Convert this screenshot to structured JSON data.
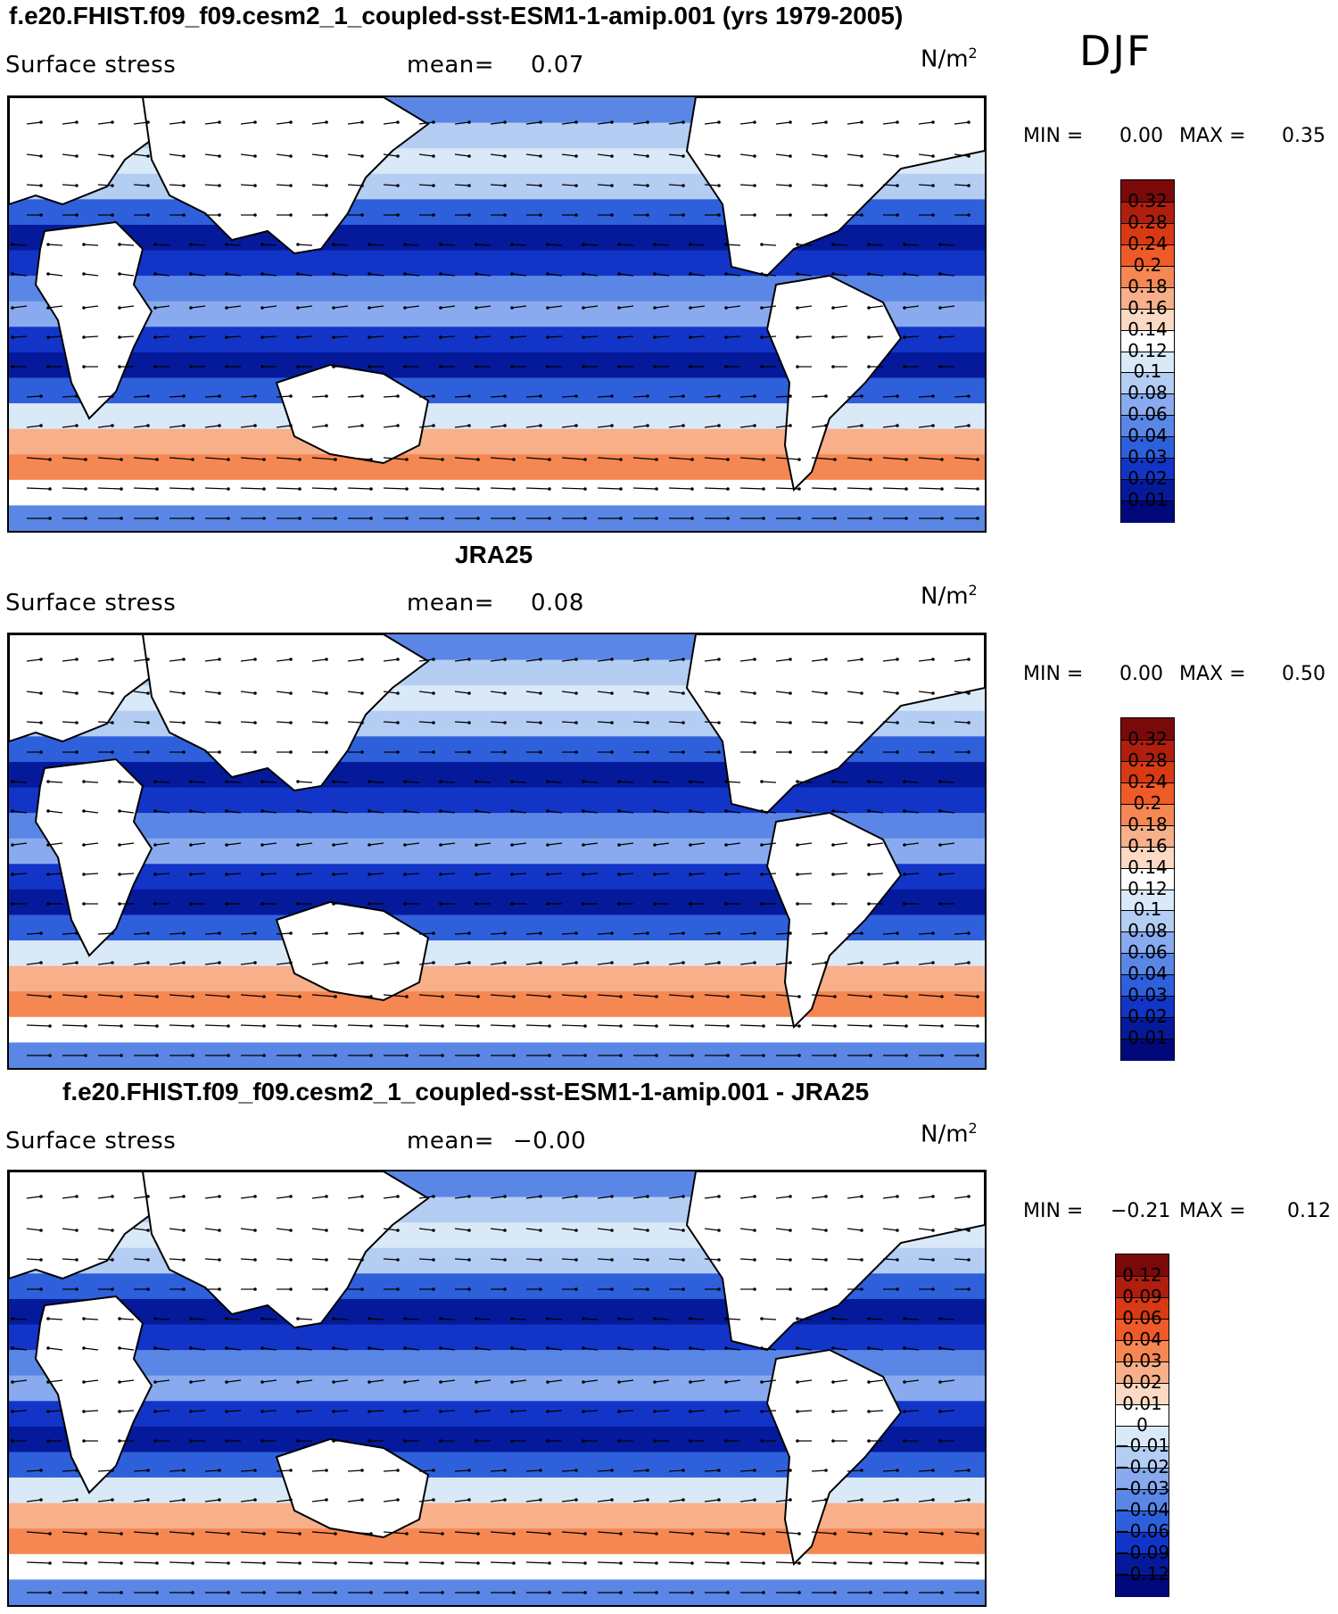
{
  "season": "DJF",
  "panels": [
    {
      "title": "f.e20.FHIST.f09_f09.cesm2_1_coupled-sst-ESM1-1-amip.001 (yrs 1979-2005)",
      "variable": "Surface stress",
      "mean_label": "mean=",
      "mean_value": "0.07",
      "units": "N/m",
      "units_exp": "2",
      "min_label": "MIN =",
      "min_value": "0.00",
      "max_label": "MAX =",
      "max_value": "0.35",
      "colorbar_labels": [
        "0.32",
        "0.28",
        "0.24",
        "0.2",
        "0.18",
        "0.16",
        "0.14",
        "0.12",
        "0.1",
        "0.08",
        "0.06",
        "0.04",
        "0.03",
        "0.02",
        "0.01"
      ],
      "colorbar_colors": [
        "#7a0a0a",
        "#b01e0e",
        "#d83a14",
        "#ee5a28",
        "#f58752",
        "#f7b08a",
        "#fbd9c2",
        "#ffffff",
        "#d9e9f7",
        "#b4cdf3",
        "#89aaee",
        "#5a87e6",
        "#2f60dc",
        "#1235c8",
        "#051a9a",
        "#00087a"
      ]
    },
    {
      "title": "JRA25",
      "variable": "Surface stress",
      "mean_label": "mean=",
      "mean_value": "0.08",
      "units": "N/m",
      "units_exp": "2",
      "min_label": "MIN =",
      "min_value": "0.00",
      "max_label": "MAX =",
      "max_value": "0.50",
      "colorbar_labels": [
        "0.32",
        "0.28",
        "0.24",
        "0.2",
        "0.18",
        "0.16",
        "0.14",
        "0.12",
        "0.1",
        "0.08",
        "0.06",
        "0.04",
        "0.03",
        "0.02",
        "0.01"
      ],
      "colorbar_colors": [
        "#7a0a0a",
        "#b01e0e",
        "#d83a14",
        "#ee5a28",
        "#f58752",
        "#f7b08a",
        "#fbd9c2",
        "#ffffff",
        "#d9e9f7",
        "#b4cdf3",
        "#89aaee",
        "#5a87e6",
        "#2f60dc",
        "#1235c8",
        "#051a9a",
        "#00087a"
      ]
    },
    {
      "title": "f.e20.FHIST.f09_f09.cesm2_1_coupled-sst-ESM1-1-amip.001 - JRA25",
      "variable": "Surface stress",
      "mean_label": "mean=",
      "mean_value": "−0.00",
      "units": "N/m",
      "units_exp": "2",
      "min_label": "MIN =",
      "min_value": "−0.21",
      "max_label": "MAX =",
      "max_value": "0.12",
      "colorbar_labels": [
        "0.12",
        "0.09",
        "0.06",
        "0.04",
        "0.03",
        "0.02",
        "0.01",
        "0",
        "−0.01",
        "−0.02",
        "−0.03",
        "−0.04",
        "−0.06",
        "−0.09",
        "−0.12"
      ],
      "colorbar_colors": [
        "#7a0a0a",
        "#b01e0e",
        "#d83a14",
        "#ee5a28",
        "#f58752",
        "#f7b08a",
        "#fbd9c2",
        "#ffffff",
        "#d9e9f7",
        "#b4cdf3",
        "#89aaee",
        "#5a87e6",
        "#2f60dc",
        "#1235c8",
        "#051a9a",
        "#00087a"
      ]
    }
  ]
}
